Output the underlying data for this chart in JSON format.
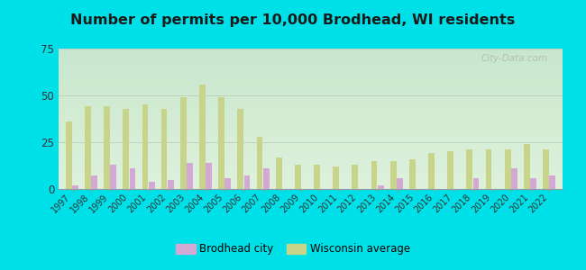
{
  "title": "Number of permits per 10,000 Brodhead, WI residents",
  "years": [
    1997,
    1998,
    1999,
    2000,
    2001,
    2002,
    2003,
    2004,
    2005,
    2006,
    2007,
    2008,
    2009,
    2010,
    2011,
    2012,
    2013,
    2014,
    2015,
    2016,
    2017,
    2018,
    2019,
    2020,
    2021,
    2022
  ],
  "brodhead": [
    2,
    7,
    13,
    11,
    4,
    5,
    14,
    14,
    6,
    7,
    11,
    0,
    0,
    0,
    0,
    0,
    2,
    6,
    0,
    0,
    0,
    6,
    0,
    11,
    6,
    7
  ],
  "wisconsin": [
    36,
    44,
    44,
    43,
    45,
    43,
    49,
    56,
    49,
    43,
    28,
    17,
    13,
    13,
    12,
    13,
    15,
    15,
    16,
    19,
    20,
    21,
    21,
    21,
    24,
    21
  ],
  "brodhead_color": "#d4a8d4",
  "wisconsin_color": "#c8d48a",
  "background_top": "#d8f0e0",
  "background_bottom": "#e8f5e8",
  "outer_background": "#00e0e8",
  "ylim": [
    0,
    75
  ],
  "yticks": [
    0,
    25,
    50,
    75
  ],
  "legend_brodhead": "Brodhead city",
  "legend_wisconsin": "Wisconsin average",
  "title_fontsize": 11.5,
  "watermark": "City-Data.com"
}
